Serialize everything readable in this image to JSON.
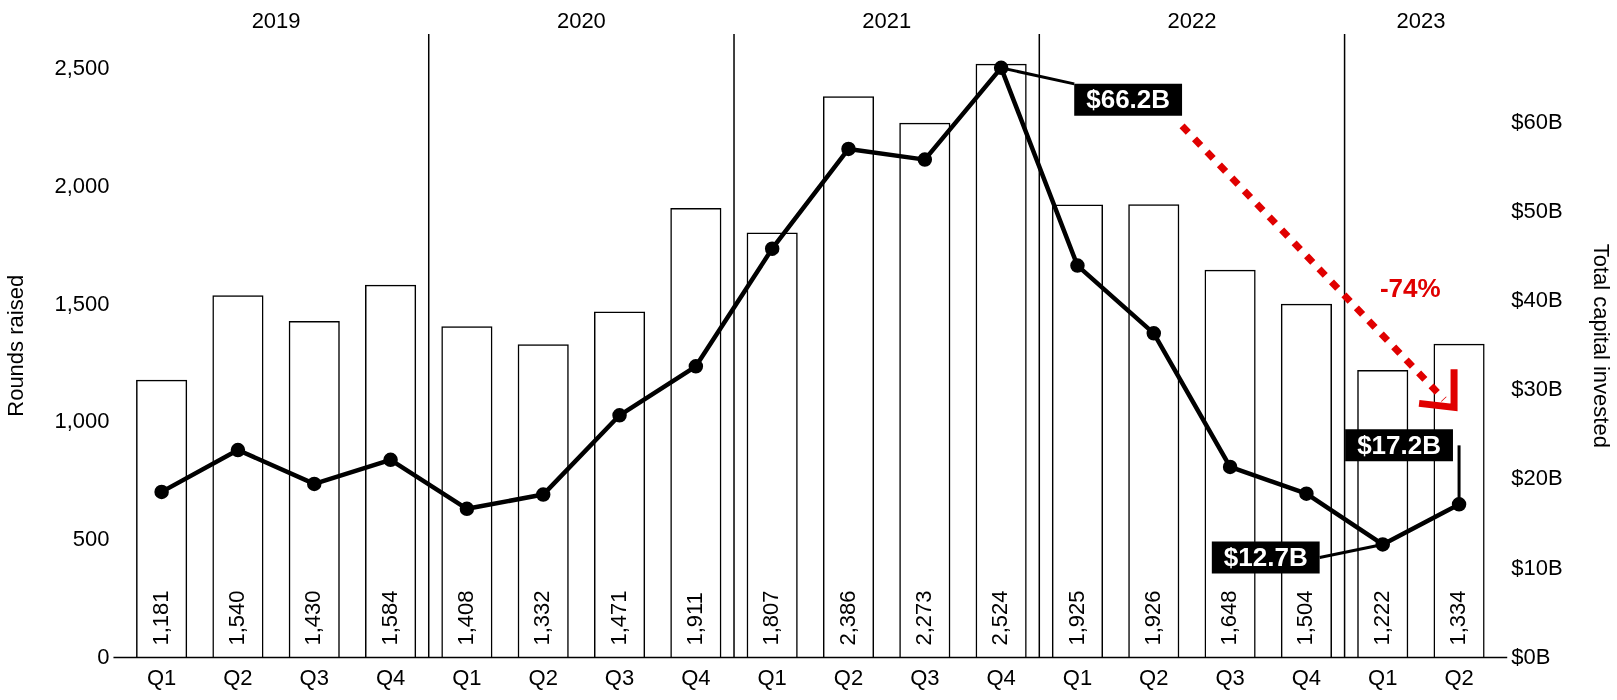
{
  "chart_data": {
    "type": "bar",
    "categories": [
      "Q1",
      "Q2",
      "Q3",
      "Q4",
      "Q1",
      "Q2",
      "Q3",
      "Q4",
      "Q1",
      "Q2",
      "Q3",
      "Q4",
      "Q1",
      "Q2",
      "Q3",
      "Q4",
      "Q1",
      "Q2"
    ],
    "ylabel": "Rounds raised",
    "y2label": "Total capital invested",
    "ylim": [
      0,
      2650
    ],
    "yticks": [
      0,
      500,
      {
        "value": 1000,
        "label": "1,000"
      },
      {
        "value": 1500,
        "label": "1,500"
      },
      {
        "value": 2000,
        "label": "2,000"
      },
      {
        "value": 2500,
        "label": "2,500"
      }
    ],
    "y2lim": [
      0,
      70
    ],
    "y2ticks": [
      {
        "value": 0,
        "label": "$0B"
      },
      {
        "value": 10,
        "label": "$10B"
      },
      {
        "value": 20,
        "label": "$20B"
      },
      {
        "value": 30,
        "label": "$30B"
      },
      {
        "value": 40,
        "label": "$40B"
      },
      {
        "value": 50,
        "label": "$50B"
      },
      {
        "value": 60,
        "label": "$60B"
      }
    ],
    "series": [
      {
        "color": "#000000",
        "values": [
          1181,
          1540,
          1430,
          1584,
          1408,
          1332,
          1471,
          1911,
          1807,
          2386,
          2273,
          2524,
          1925,
          1926,
          1648,
          1504,
          1222,
          1334
        ],
        "value_labels": [
          "1,181",
          "1,540",
          "1,430",
          "1,584",
          "1,408",
          "1,332",
          "1,471",
          "1,911",
          "1,807",
          "2,386",
          "2,273",
          "2,524",
          "1,925",
          "1,926",
          "1,648",
          "1,504",
          "1,222",
          "1,334"
        ]
      },
      {
        "type": "line",
        "axis": "y2",
        "color": "#000000",
        "values": [
          18.6,
          23.3,
          19.5,
          22.2,
          16.7,
          18.3,
          27.2,
          32.7,
          45.9,
          57.1,
          55.9,
          66.2,
          44.0,
          36.4,
          21.4,
          18.4,
          12.7,
          17.2
        ],
        "value_labels": [
          null,
          null,
          null,
          null,
          null,
          null,
          null,
          null,
          null,
          null,
          null,
          "$66.2B",
          null,
          null,
          null,
          null,
          "$12.7B",
          "$17.2B"
        ]
      }
    ],
    "annotations": [
      "2019",
      "2020",
      "2021",
      "2022",
      "2023",
      "-74%"
    ],
    "marker": "circle",
    "grid": false,
    "legend": false
  }
}
